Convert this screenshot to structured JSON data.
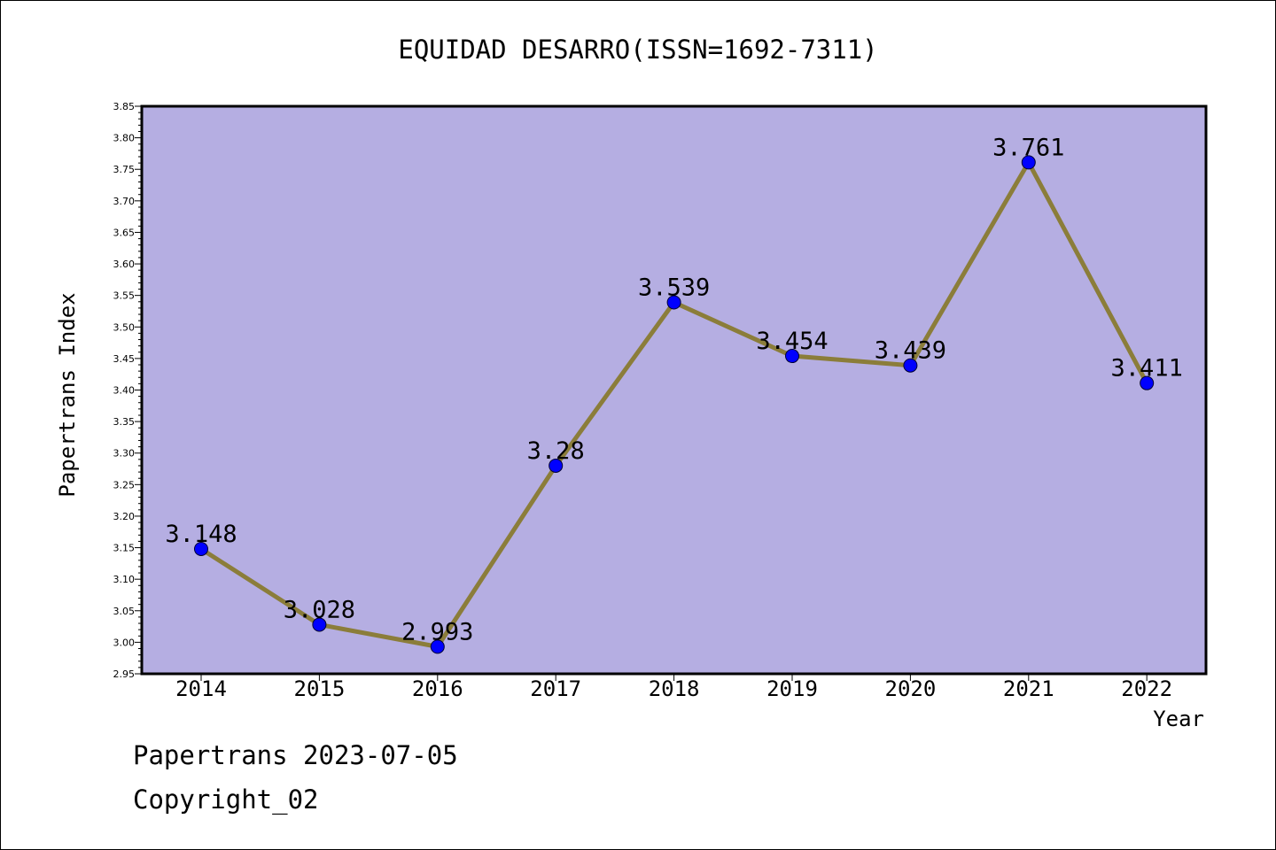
{
  "chart_data": {
    "type": "line",
    "title": "EQUIDAD DESARRO(ISSN=1692-7311)",
    "xlabel": "Year",
    "ylabel": "Papertrans Index",
    "categories": [
      "2014",
      "2015",
      "2016",
      "2017",
      "2018",
      "2019",
      "2020",
      "2021",
      "2022"
    ],
    "values": [
      3.148,
      3.028,
      2.993,
      3.28,
      3.539,
      3.454,
      3.439,
      3.761,
      3.411
    ],
    "data_labels": [
      "3.148",
      "3.028",
      "2.993",
      "3.28",
      "3.539",
      "3.454",
      "3.439",
      "3.761",
      "3.411"
    ],
    "ylim": [
      2.95,
      3.85
    ],
    "yticks": [
      "2.95",
      "3.00",
      "3.05",
      "3.10",
      "3.15",
      "3.20",
      "3.25",
      "3.30",
      "3.35",
      "3.40",
      "3.45",
      "3.50",
      "3.55",
      "3.60",
      "3.65",
      "3.70",
      "3.75",
      "3.80",
      "3.85"
    ],
    "grid": false,
    "colors": {
      "plot_background": "#b5aee2",
      "line": "#8b7d3a",
      "marker": "#0000ff"
    }
  },
  "footer": {
    "line1": "Papertrans 2023-07-05",
    "line2": "Copyright_02"
  }
}
